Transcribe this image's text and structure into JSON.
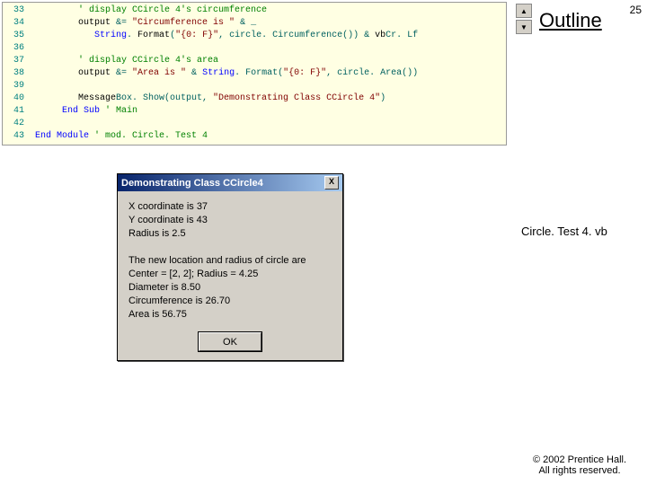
{
  "page_number": "25",
  "outline_label": "Outline",
  "filename": "Circle. Test 4. vb",
  "copyright_line1": "© 2002 Prentice Hall.",
  "copyright_line2": "All rights reserved.",
  "arrow_up": "▲",
  "arrow_down": "▼",
  "code": [
    {
      "n": "33",
      "segs": [
        {
          "cls": "c-comment",
          "t": "         ' display CCircle 4's circumference"
        }
      ]
    },
    {
      "n": "34",
      "segs": [
        {
          "cls": "c-ident",
          "t": "         output "
        },
        {
          "cls": "c-punct",
          "t": "&= "
        },
        {
          "cls": "c-string",
          "t": "\"Circumference is \""
        },
        {
          "cls": "c-punct",
          "t": " & _"
        }
      ]
    },
    {
      "n": "35",
      "segs": [
        {
          "cls": "c-ident",
          "t": "            "
        },
        {
          "cls": "c-keyword",
          "t": "String"
        },
        {
          "cls": "c-punct",
          "t": ". "
        },
        {
          "cls": "c-ident",
          "t": "Format"
        },
        {
          "cls": "c-punct",
          "t": "("
        },
        {
          "cls": "c-string",
          "t": "\"{0: F}\""
        },
        {
          "cls": "c-punct",
          "t": ", circle. Circumference()) & "
        },
        {
          "cls": "c-ident",
          "t": "vb"
        },
        {
          "cls": "c-punct",
          "t": "Cr. Lf"
        }
      ]
    },
    {
      "n": "36",
      "segs": [
        {
          "cls": "c-ident",
          "t": " "
        }
      ]
    },
    {
      "n": "37",
      "segs": [
        {
          "cls": "c-comment",
          "t": "         ' display CCircle 4's area"
        }
      ]
    },
    {
      "n": "38",
      "segs": [
        {
          "cls": "c-ident",
          "t": "         output "
        },
        {
          "cls": "c-punct",
          "t": "&= "
        },
        {
          "cls": "c-string",
          "t": "\"Area is \""
        },
        {
          "cls": "c-punct",
          "t": " & "
        },
        {
          "cls": "c-keyword",
          "t": "String"
        },
        {
          "cls": "c-punct",
          "t": ". Format("
        },
        {
          "cls": "c-string",
          "t": "\"{0: F}\""
        },
        {
          "cls": "c-punct",
          "t": ", circle. Area())"
        }
      ]
    },
    {
      "n": "39",
      "segs": [
        {
          "cls": "c-ident",
          "t": " "
        }
      ]
    },
    {
      "n": "40",
      "segs": [
        {
          "cls": "c-ident",
          "t": "         Message"
        },
        {
          "cls": "c-punct",
          "t": "Box. Show(output, "
        },
        {
          "cls": "c-string",
          "t": "\"Demonstrating Class CCircle 4\""
        },
        {
          "cls": "c-punct",
          "t": ")"
        }
      ]
    },
    {
      "n": "41",
      "segs": [
        {
          "cls": "c-keyword",
          "t": "      End Sub "
        },
        {
          "cls": "c-comment",
          "t": "' Main"
        }
      ]
    },
    {
      "n": "42",
      "segs": [
        {
          "cls": "c-ident",
          "t": " "
        }
      ]
    },
    {
      "n": "43",
      "segs": [
        {
          "cls": "c-keyword",
          "t": " End Module "
        },
        {
          "cls": "c-comment",
          "t": "' mod. Circle. Test 4"
        }
      ]
    }
  ],
  "msgbox": {
    "title": "Demonstrating Class CCircle4",
    "close": "X",
    "lines": [
      "X coordinate is 37",
      "Y coordinate is 43",
      "Radius is 2.5",
      "",
      "The new location and radius of circle are",
      "Center = [2, 2]; Radius = 4.25",
      "Diameter is 8.50",
      "Circumference is 26.70",
      "Area is 56.75"
    ],
    "ok": "OK"
  }
}
